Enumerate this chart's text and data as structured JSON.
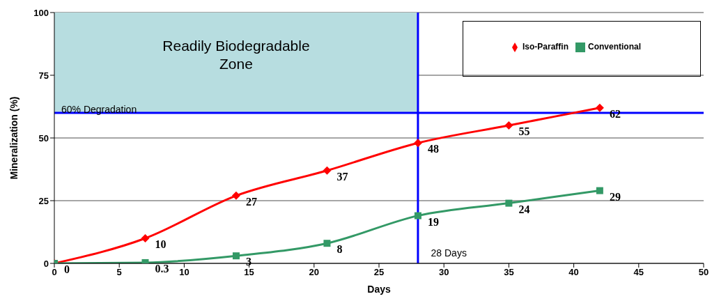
{
  "chart_data": {
    "type": "line",
    "xlabel": "Days",
    "ylabel": "Mineralization (%)",
    "x": [
      0,
      7,
      14,
      21,
      28,
      35,
      42
    ],
    "series": [
      {
        "name": "Iso-Paraffin",
        "color": "#ff0000",
        "marker": "diamond",
        "values": [
          0,
          10,
          27,
          37,
          48,
          55,
          62
        ],
        "value_labels": [
          "0",
          "10",
          "27",
          "37",
          "48",
          "55",
          "62"
        ]
      },
      {
        "name": "Conventional",
        "color": "#339966",
        "marker": "square",
        "values": [
          0,
          0.3,
          3,
          8,
          19,
          24,
          29
        ],
        "value_labels": [
          null,
          "0.3",
          "3",
          "8",
          "19",
          "24",
          "29"
        ]
      }
    ],
    "xlim": [
      0,
      50
    ],
    "xticks": [
      0,
      5,
      10,
      15,
      20,
      25,
      30,
      35,
      40,
      45,
      50
    ],
    "ylim": [
      0,
      100
    ],
    "yticks": [
      0,
      25,
      50,
      75,
      100
    ],
    "grid": "y",
    "legend": "top right",
    "ref_lines": [
      {
        "axis": "y",
        "value": 60,
        "label": "60% Degradation",
        "color": "#0000ff"
      },
      {
        "axis": "x",
        "value": 28,
        "label": "28 Days",
        "color": "#0000ff"
      }
    ],
    "bands": [
      {
        "axis": "x",
        "from": 0,
        "to": 28,
        "label": "Readily Biodegradable Zone",
        "color": "#b7dde0"
      }
    ]
  }
}
